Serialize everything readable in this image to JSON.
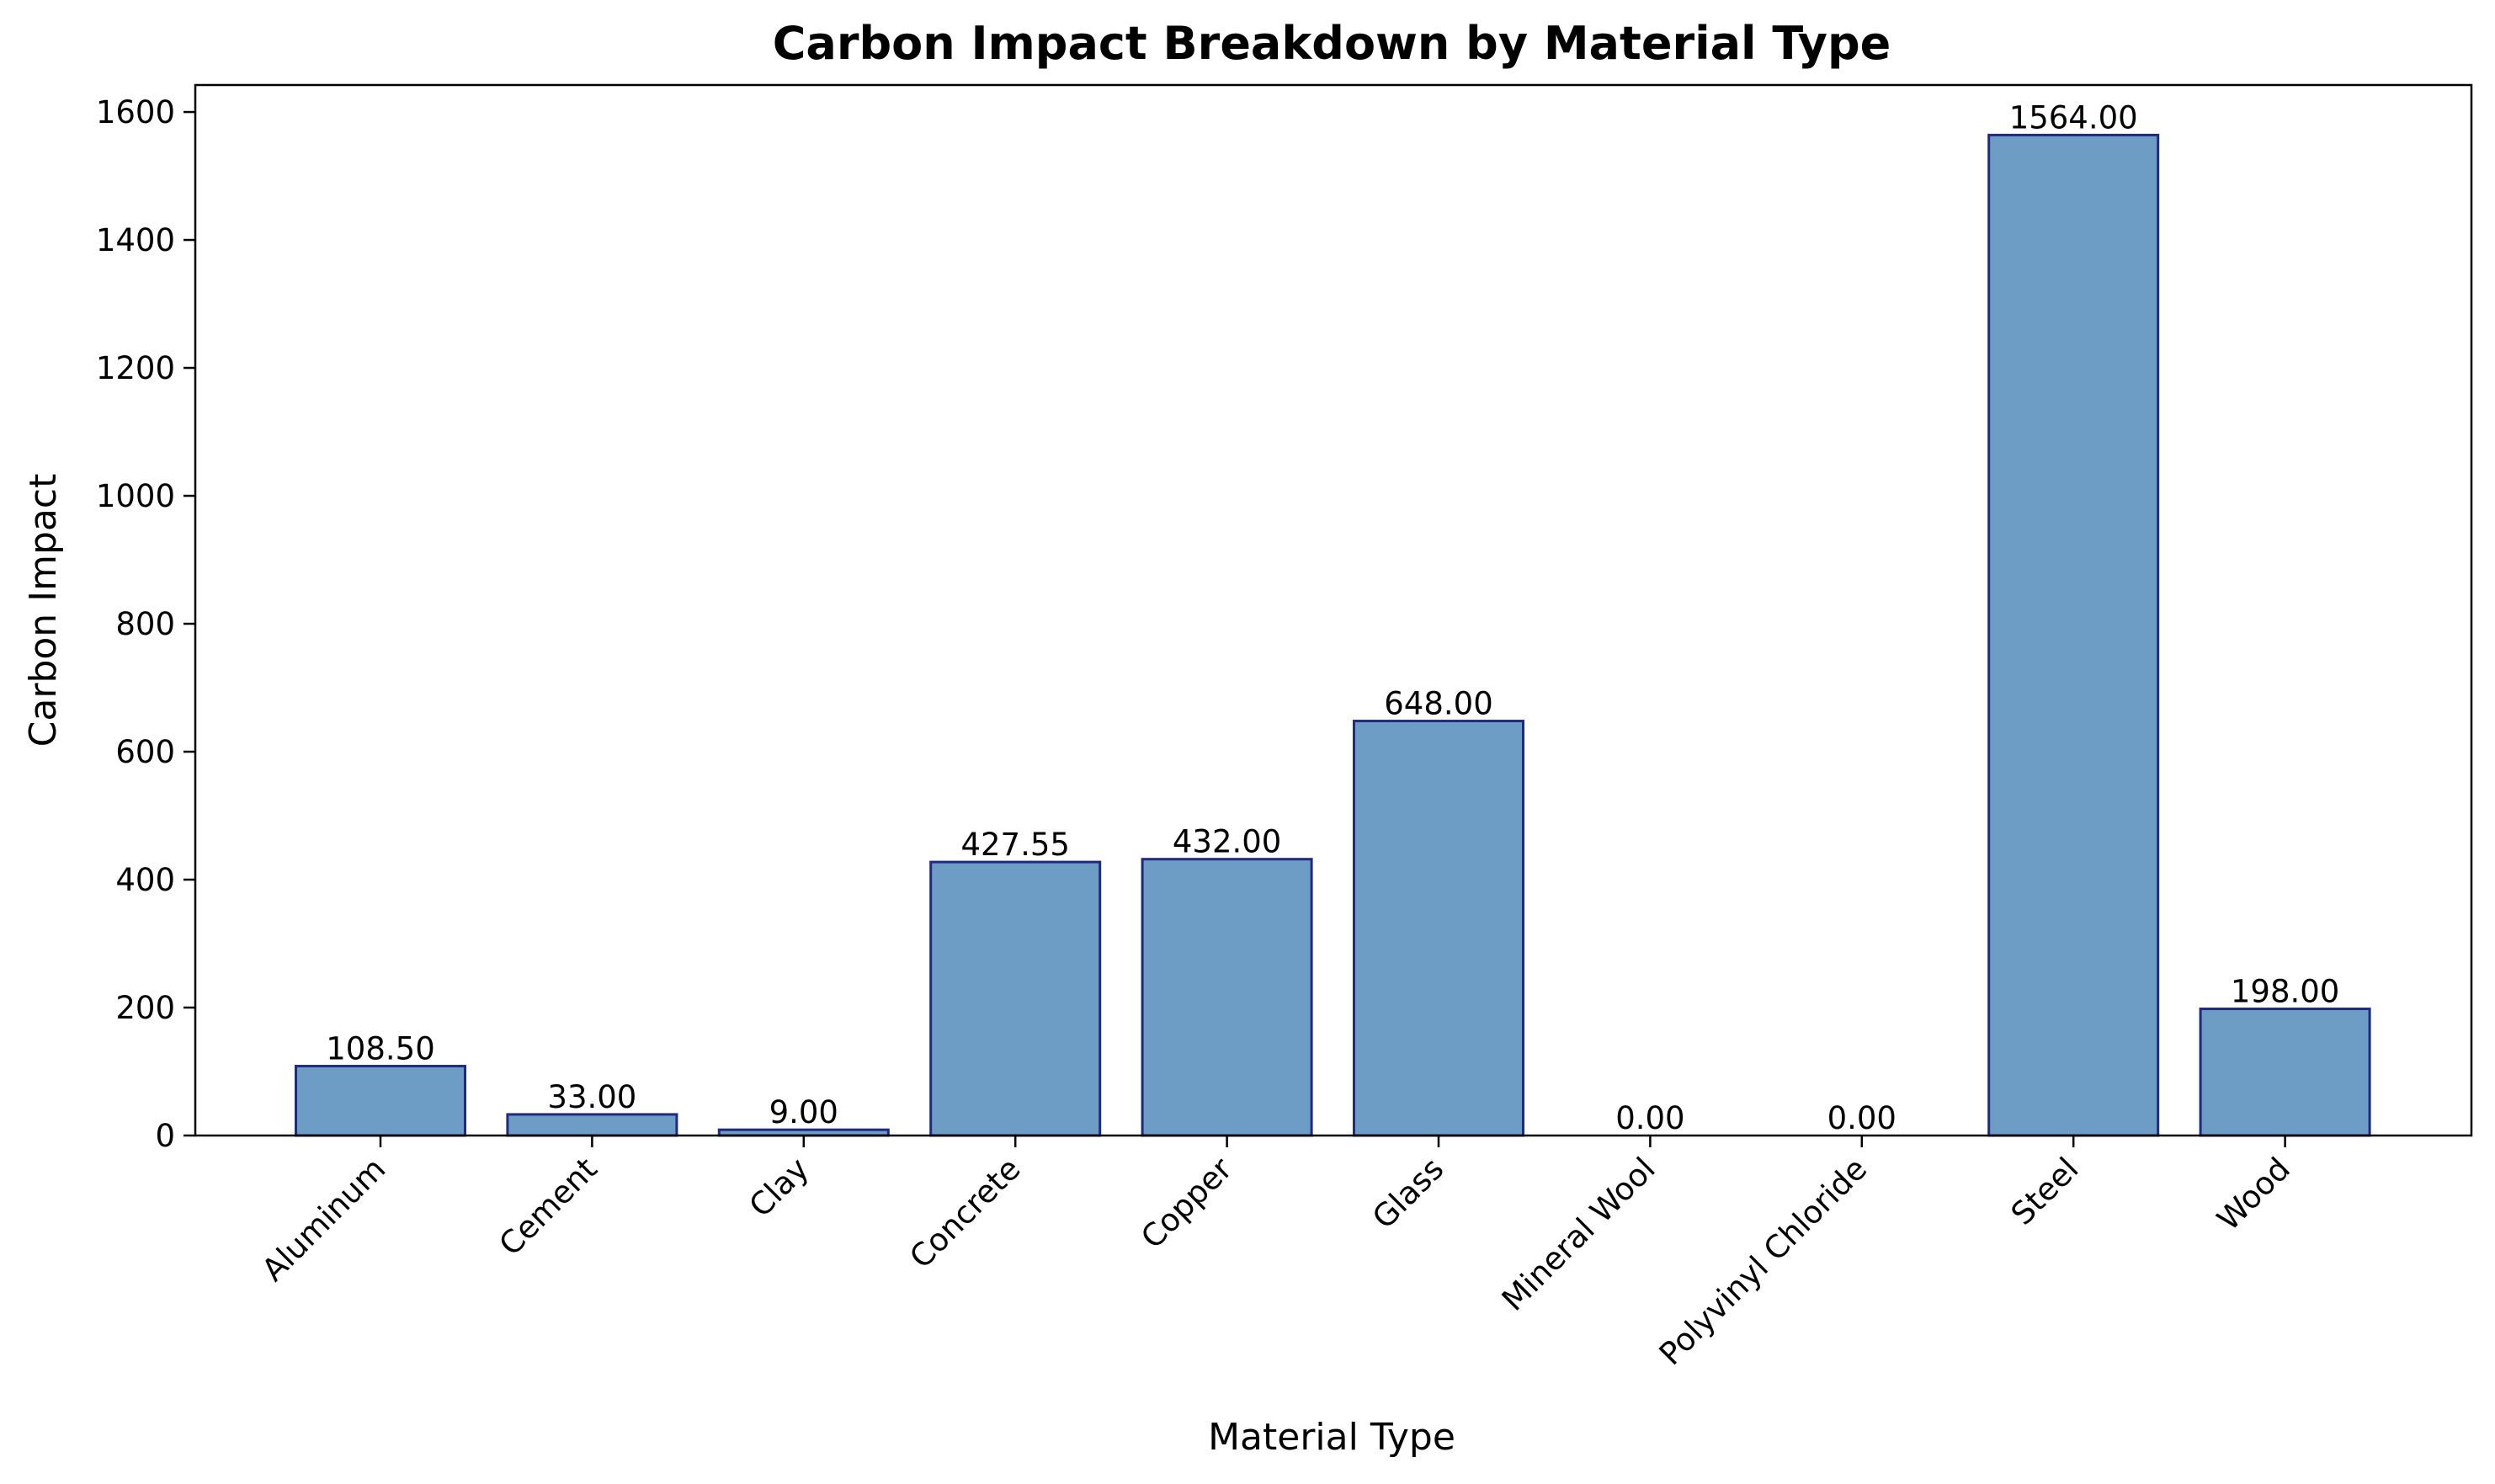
{
  "chart_data": {
    "type": "bar",
    "title": "Carbon Impact Breakdown by Material Type",
    "xlabel": "Material Type",
    "ylabel": "Carbon Impact",
    "categories": [
      "Aluminum",
      "Cement",
      "Clay",
      "Concrete",
      "Copper",
      "Glass",
      "Mineral Wool",
      "Polyvinyl Chloride",
      "Steel",
      "Wood"
    ],
    "values": [
      108.5,
      33.0,
      9.0,
      427.55,
      432.0,
      648.0,
      0.0,
      0.0,
      1564.0,
      198.0
    ],
    "data_labels": [
      "108.50",
      "33.00",
      "9.00",
      "427.55",
      "432.00",
      "648.00",
      "0.00",
      "0.00",
      "1564.00",
      "198.00"
    ],
    "ylim": [
      0,
      1642.2
    ],
    "yticks": [
      0,
      200,
      400,
      600,
      800,
      1000,
      1200,
      1400,
      1600
    ],
    "ytick_labels": [
      "0",
      "200",
      "400",
      "600",
      "800",
      "1000",
      "1200",
      "1400",
      "1600"
    ],
    "grid": false,
    "legend": "none",
    "bar_fill_color": "#6d9dc5",
    "bar_edge_color": "#1f2a80"
  }
}
